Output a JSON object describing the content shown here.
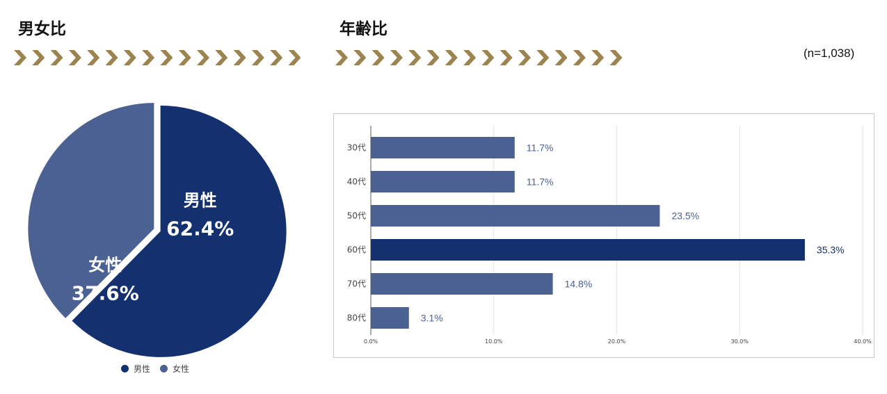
{
  "sections": {
    "left_title": "男女比",
    "right_title": "年齢比",
    "sample_size": "(n=1,038)"
  },
  "colors": {
    "chevron": "#9c8450",
    "male": "#15306f",
    "female": "#4b6192",
    "bar_default": "#4b6192",
    "bar_highlight": "#15306f"
  },
  "chart_data": [
    {
      "type": "pie",
      "title": "",
      "slices": [
        {
          "label": "男性",
          "value": 62.4,
          "value_label": "62.4%",
          "color": "#15306f"
        },
        {
          "label": "女性",
          "value": 37.6,
          "value_label": "37.6%",
          "color": "#4b6192"
        }
      ],
      "legend": {
        "position": "bottom",
        "entries": [
          "男性",
          "女性"
        ]
      }
    },
    {
      "type": "bar",
      "orientation": "horizontal",
      "title": "",
      "categories": [
        "30代",
        "40代",
        "50代",
        "60代",
        "70代",
        "80代"
      ],
      "values": [
        11.7,
        11.7,
        23.5,
        35.3,
        14.8,
        3.1
      ],
      "value_labels": [
        "11.7%",
        "11.7%",
        "23.5%",
        "35.3%",
        "14.8%",
        "3.1%"
      ],
      "highlight": "60代",
      "xlim": [
        0,
        40
      ],
      "xticks": [
        "0.0%",
        "10.0%",
        "20.0%",
        "30.0%",
        "40.0%"
      ],
      "xtick_values": [
        0,
        10,
        20,
        30,
        40
      ],
      "grid": true
    }
  ]
}
